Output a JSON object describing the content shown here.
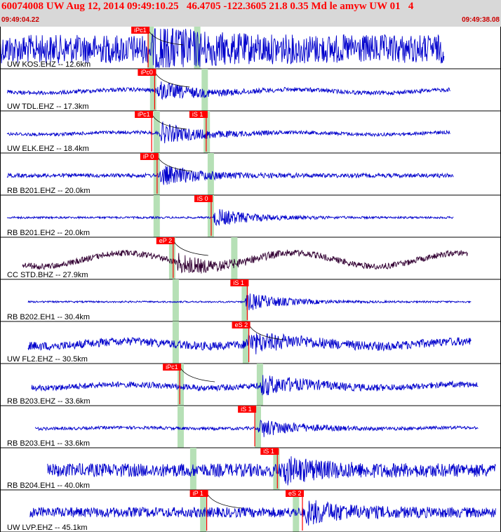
{
  "header": {
    "title": "60074008 UW Aug 12, 2014 09:49:10.25   46.4705 -122.3605 21.8 0.35 Md le amyw UW 01   4",
    "time_start": "09:49:04.22",
    "time_end": "09:49:38.08"
  },
  "colors": {
    "header_bg": "#d8d8d8",
    "title": "#ff0000",
    "trace": "#0000cc",
    "trace_broadband": "#330033",
    "pick_box": "#ff0000",
    "pick_text": "#ffffff",
    "window_band": "#b6e0b6",
    "moveout_curve": "#000000"
  },
  "panels": [
    {
      "label": "UW KOS.EHZ -- 12.6km",
      "color": "#0000cc",
      "amp": 1.0,
      "noise": 0.85,
      "swell": 0.0,
      "trace_start": 0.0,
      "trace_end": 0.887,
      "arrival": 0.303,
      "band1": 0.3,
      "band2": 0.393,
      "picks": [
        {
          "text": "iPc1",
          "pos": 0.262
        }
      ],
      "has_curve": true
    },
    {
      "label": "UW TDL.EHZ -- 17.3km",
      "color": "#0000cc",
      "amp": 0.55,
      "noise": 0.12,
      "swell": 0.15,
      "trace_start": 0.014,
      "trace_end": 0.899,
      "arrival": 0.31,
      "band1": 0.305,
      "band2": 0.408,
      "picks": [
        {
          "text": "iPc0",
          "pos": 0.275
        }
      ],
      "has_curve": true
    },
    {
      "label": "UW ELK.EHZ -- 18.4km",
      "color": "#0000cc",
      "amp": 0.6,
      "noise": 0.1,
      "swell": 0.1,
      "trace_start": 0.014,
      "trace_end": 0.899,
      "arrival": 0.318,
      "band1": 0.312,
      "band2": 0.412,
      "picks": [
        {
          "text": "iPc1",
          "pos": 0.269
        },
        {
          "text": "iS 1",
          "pos": 0.378
        }
      ],
      "has_curve": true
    },
    {
      "label": "RB B201.EHZ -- 20.0km",
      "color": "#0000cc",
      "amp": 0.6,
      "noise": 0.12,
      "swell": 0.0,
      "trace_start": 0.014,
      "trace_end": 0.906,
      "arrival": 0.318,
      "band1": 0.312,
      "band2": 0.42,
      "picks": [
        {
          "text": "iP 0",
          "pos": 0.28
        }
      ],
      "has_curve": true
    },
    {
      "label": "RB B201.EH2 -- 20.0km",
      "color": "#0000cc",
      "amp": 0.55,
      "noise": 0.06,
      "swell": 0.0,
      "trace_start": 0.014,
      "trace_end": 0.906,
      "arrival": 0.425,
      "band1": 0.312,
      "band2": 0.42,
      "picks": [
        {
          "text": "iS 0",
          "pos": 0.388
        }
      ],
      "has_curve": false
    },
    {
      "label": "CC STD.BHZ -- 27.9km",
      "color": "#330033",
      "amp": 0.5,
      "noise": 0.18,
      "swell": 0.6,
      "trace_start": 0.045,
      "trace_end": 0.934,
      "arrival": 0.35,
      "band1": 0.343,
      "band2": 0.467,
      "picks": [
        {
          "text": "eP 2",
          "pos": 0.312
        }
      ],
      "has_curve": true
    },
    {
      "label": "RB B202.EH1 -- 30.4km",
      "color": "#0000cc",
      "amp": 0.55,
      "noise": 0.05,
      "swell": 0.0,
      "trace_start": 0.056,
      "trace_end": 0.941,
      "arrival": 0.488,
      "band1": 0.35,
      "band2": 0.488,
      "picks": [
        {
          "text": "iS 1",
          "pos": 0.46
        }
      ],
      "has_curve": false
    },
    {
      "label": "UW FL2.EHZ -- 30.5km",
      "color": "#0000cc",
      "amp": 0.55,
      "noise": 0.25,
      "swell": 0.2,
      "trace_start": 0.056,
      "trace_end": 0.941,
      "arrival": 0.49,
      "band1": 0.35,
      "band2": 0.49,
      "picks": [
        {
          "text": "eS 2",
          "pos": 0.463
        }
      ],
      "has_curve": true
    },
    {
      "label": "RB B203.EHZ -- 33.6km",
      "color": "#0000cc",
      "amp": 0.55,
      "noise": 0.18,
      "swell": 0.15,
      "trace_start": 0.063,
      "trace_end": 0.955,
      "arrival": 0.518,
      "band1": 0.36,
      "band2": 0.518,
      "picks": [
        {
          "text": "iPc1",
          "pos": 0.325
        }
      ],
      "has_curve": true
    },
    {
      "label": "RB B203.EH1 -- 33.6km",
      "color": "#0000cc",
      "amp": 0.55,
      "noise": 0.09,
      "swell": 0.05,
      "trace_start": 0.07,
      "trace_end": 0.955,
      "arrival": 0.514,
      "band1": 0.36,
      "band2": 0.514,
      "picks": [
        {
          "text": "iS 1",
          "pos": 0.475
        }
      ],
      "has_curve": false
    },
    {
      "label": "RB B204.EH1 -- 40.0km",
      "color": "#0000cc",
      "amp": 0.6,
      "noise": 0.4,
      "swell": 0.0,
      "trace_start": 0.095,
      "trace_end": 0.99,
      "arrival": 0.56,
      "band1": 0.385,
      "band2": 0.551,
      "picks": [
        {
          "text": "iS 1",
          "pos": 0.52
        }
      ],
      "has_curve": false
    },
    {
      "label": "UW LVP.EHZ -- 45.1km",
      "color": "#0000cc",
      "amp": 0.6,
      "noise": 0.3,
      "swell": 0.0,
      "trace_start": 0.06,
      "trace_end": 0.99,
      "arrival": 0.608,
      "band1": 0.405,
      "band2": 0.59,
      "picks": [
        {
          "text": "iP 1",
          "pos": 0.379
        },
        {
          "text": "eS 2",
          "pos": 0.57
        }
      ],
      "has_curve": true
    }
  ]
}
